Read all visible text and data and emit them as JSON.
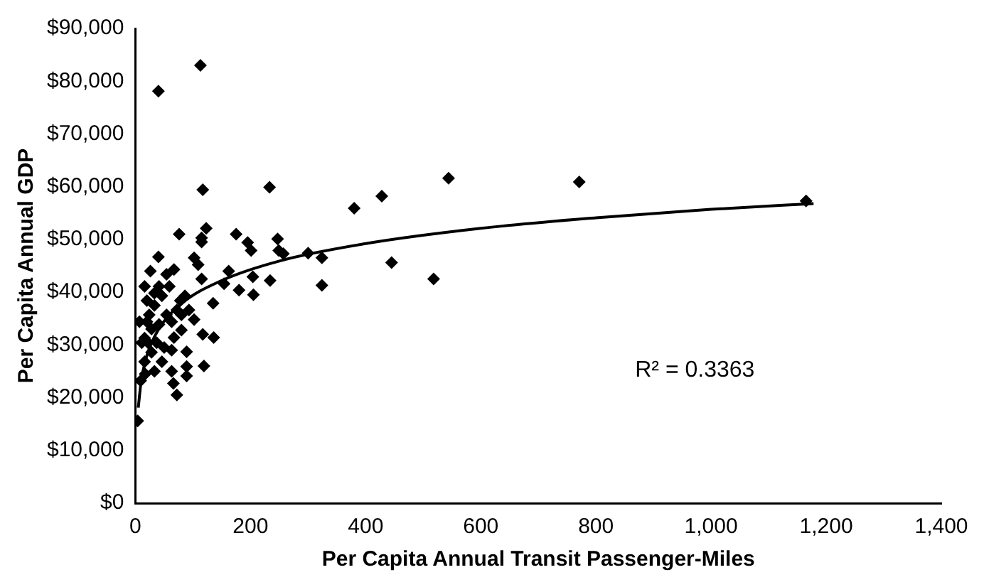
{
  "chart_data": {
    "type": "scatter",
    "xlabel": "Per Capita Annual Transit Passenger-Miles",
    "ylabel": "Per Capita Annual GDP",
    "xlim": [
      0,
      1400
    ],
    "ylim": [
      0,
      90000
    ],
    "xticks": [
      0,
      200,
      400,
      600,
      800,
      {
        "value": 1000,
        "label": "1,000"
      },
      {
        "value": 1200,
        "label": "1,200"
      },
      {
        "value": 1400,
        "label": "1,400"
      }
    ],
    "yticks": [
      {
        "value": 0,
        "label": "$0"
      },
      {
        "value": 10000,
        "label": "$10,000"
      },
      {
        "value": 20000,
        "label": "$20,000"
      },
      {
        "value": 30000,
        "label": "$30,000"
      },
      {
        "value": 40000,
        "label": "$40,000"
      },
      {
        "value": 50000,
        "label": "$50,000"
      },
      {
        "value": 60000,
        "label": "$60,000"
      },
      {
        "value": 70000,
        "label": "$70,000"
      },
      {
        "value": 80000,
        "label": "$80,000"
      },
      {
        "value": 90000,
        "label": "$90,000"
      }
    ],
    "grid": false,
    "legend": false,
    "marker": "diamond",
    "annotations": [
      "R² = 0.3363"
    ],
    "series": [
      {
        "type": "scatter",
        "color": "#000000",
        "x": [
          4,
          40,
          113,
          117,
          233,
          380,
          123,
          115,
          115,
          76,
          175,
          195,
          201,
          247,
          249,
          257,
          300,
          324,
          324,
          234,
          204,
          205,
          180,
          154,
          162,
          135,
          136,
          117,
          119,
          102,
          109,
          115,
          40,
          26,
          67,
          59,
          86,
          78,
          93,
          102,
          80,
          89,
          89,
          89,
          66,
          72,
          63,
          46,
          33,
          16,
          9,
          17,
          16,
          20,
          24,
          7,
          28,
          41,
          22,
          37,
          50,
          63,
          33,
          46,
          54,
          63,
          16,
          41,
          54,
          33,
          67,
          20,
          28,
          11,
          72,
          80,
          428,
          544,
          771,
          445,
          518,
          1165
        ],
        "values": [
          15600,
          78100,
          83000,
          59400,
          59900,
          55900,
          52100,
          50300,
          49500,
          51000,
          51000,
          49400,
          47900,
          50100,
          47900,
          47300,
          47400,
          46500,
          41300,
          42200,
          42900,
          39500,
          40400,
          41600,
          44000,
          37900,
          31400,
          32000,
          26000,
          46500,
          45200,
          42500,
          46700,
          44000,
          44300,
          41100,
          39300,
          38400,
          36600,
          34800,
          32800,
          28700,
          25900,
          24100,
          22700,
          20500,
          25000,
          26800,
          25000,
          26800,
          23200,
          24500,
          41100,
          38400,
          35700,
          34400,
          33000,
          33900,
          30400,
          30400,
          29500,
          29000,
          37500,
          39300,
          35700,
          34400,
          31300,
          41100,
          43400,
          39800,
          31400,
          34400,
          28600,
          30400,
          36600,
          35700,
          58200,
          61600,
          60900,
          45600,
          42500,
          57300
        ]
      },
      {
        "type": "line",
        "color": "#000000",
        "marker": "none",
        "x": [
          5,
          10,
          20,
          40,
          80,
          150,
          250,
          400,
          600,
          800,
          1000,
          1178
        ],
        "values": [
          18100,
          23100,
          28000,
          32900,
          37800,
          42200,
          45900,
          49200,
          52100,
          54100,
          55700,
          56800
        ]
      }
    ]
  }
}
